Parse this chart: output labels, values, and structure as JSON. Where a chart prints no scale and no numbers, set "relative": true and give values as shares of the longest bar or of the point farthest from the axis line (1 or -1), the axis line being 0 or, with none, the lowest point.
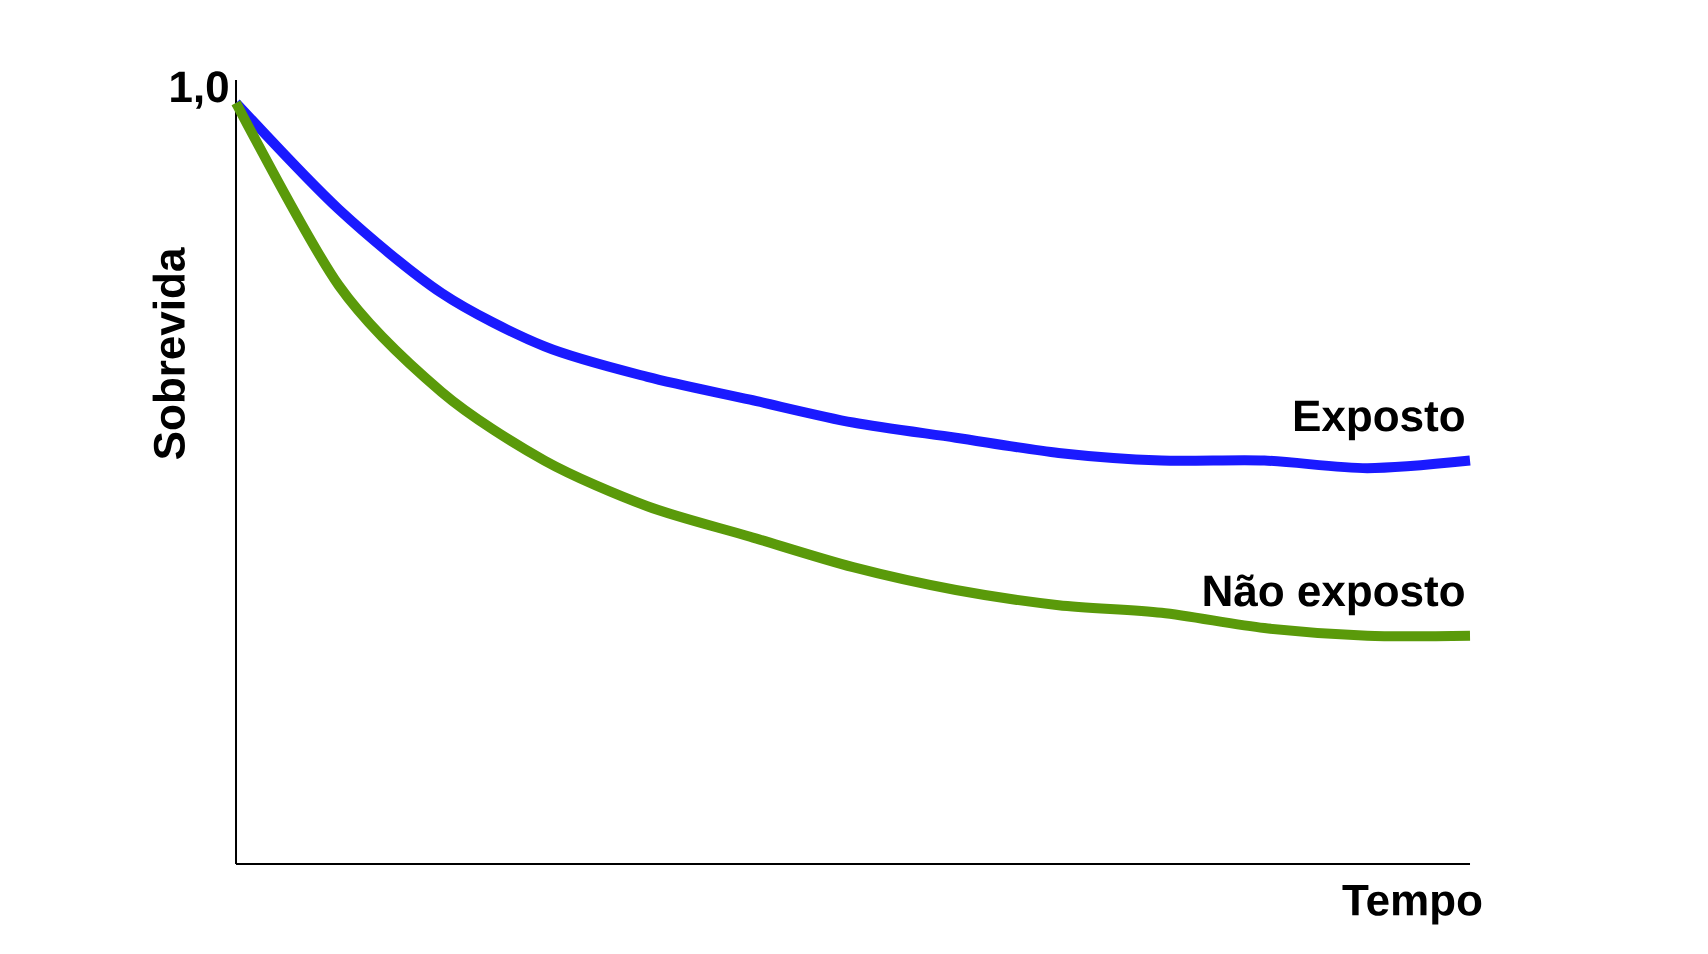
{
  "chart_data": {
    "type": "line",
    "relative": true,
    "xlabel": "Tempo",
    "ylabel": "Sobrevida",
    "annotations": [
      "1,0"
    ],
    "categories": [
      null,
      null,
      null,
      null,
      null,
      null,
      null,
      null,
      null,
      null,
      null,
      null,
      null
    ],
    "series": [
      {
        "name": "Exposto",
        "color": "#1a1aff",
        "values": [
          1.0,
          0.86,
          0.75,
          0.68,
          0.64,
          0.61,
          0.58,
          0.56,
          0.54,
          0.53,
          0.53,
          0.52,
          0.53
        ]
      },
      {
        "name": "Não exposto",
        "color": "#5a9a0a",
        "values": [
          1.0,
          0.76,
          0.62,
          0.53,
          0.47,
          0.43,
          0.39,
          0.36,
          0.34,
          0.33,
          0.31,
          0.3,
          0.3
        ]
      }
    ],
    "legend": false
  }
}
